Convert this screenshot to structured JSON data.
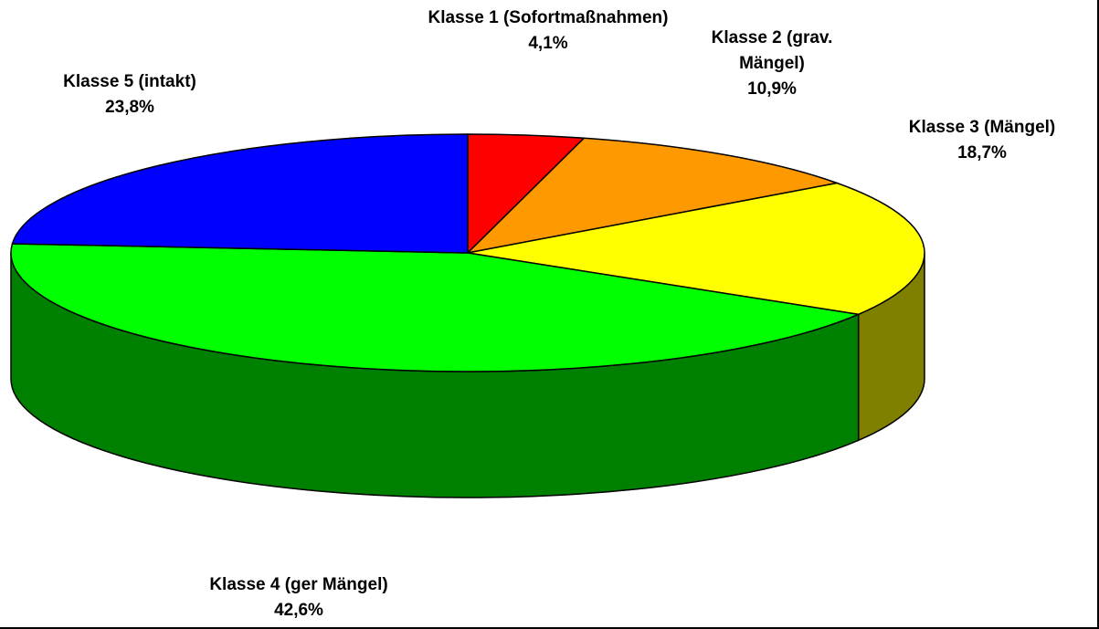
{
  "chart_data": {
    "type": "pie",
    "categories": [
      "Klasse 1 (Sofortmaßnahmen)",
      "Klasse 2 (grav. Mängel)",
      "Klasse 3 (Mängel)",
      "Klasse 4 (ger Mängel)",
      "Klasse 5 (intakt)"
    ],
    "values": [
      4.1,
      10.9,
      18.7,
      42.6,
      23.8
    ],
    "value_labels": [
      "4,1%",
      "10,9%",
      "18,7%",
      "42,6%",
      "23,8%"
    ],
    "colors": [
      "#ff0000",
      "#ff9900",
      "#ffff00",
      "#00ff00",
      "#0000ff"
    ],
    "side_colors": [
      "#800000",
      "#804c00",
      "#808000",
      "#008000",
      "#000080"
    ]
  }
}
